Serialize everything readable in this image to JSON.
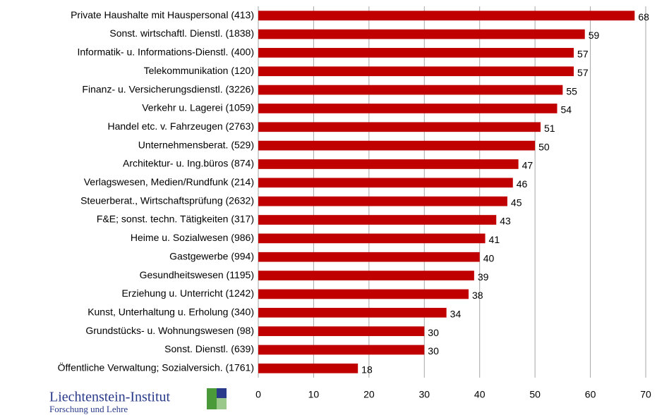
{
  "chart_data": {
    "type": "bar",
    "orientation": "horizontal",
    "categories": [
      "Private Haushalte mit Hauspersonal (413)",
      "Sonst. wirtschaftl. Dienstl. (1838)",
      "Informatik- u. Informations-Dienstl. (400)",
      "Telekommunikation (120)",
      "Finanz- u. Versicherungsdienstl. (3226)",
      "Verkehr u. Lagerei (1059)",
      "Handel etc. v. Fahrzeugen (2763)",
      "Unternehmensberat. (529)",
      "Architektur- u. Ing.büros (874)",
      "Verlagswesen, Medien/Rundfunk (214)",
      "Steuerberat., Wirtschaftsprüfung (2632)",
      "F&E; sonst. techn. Tätigkeiten (317)",
      "Heime u. Sozialwesen (986)",
      "Gastgewerbe (994)",
      "Gesundheitswesen (1195)",
      "Erziehung u. Unterricht (1242)",
      "Kunst, Unterhaltung u. Erholung (340)",
      "Grundstücks- u. Wohnungswesen (98)",
      "Sonst. Dienstl. (639)",
      "Öffentliche Verwaltung; Sozialversich. (1761)"
    ],
    "values": [
      68,
      59,
      57,
      57,
      55,
      54,
      51,
      50,
      47,
      46,
      45,
      43,
      41,
      40,
      39,
      38,
      34,
      30,
      30,
      18
    ],
    "color": "#c00000",
    "xlim": [
      0,
      70
    ],
    "xticks": [
      0,
      10,
      20,
      30,
      40,
      50,
      60,
      70
    ],
    "grid": true
  },
  "footer": {
    "title": "Liechtenstein-Institut",
    "subtitle": "Forschung und Lehre"
  }
}
